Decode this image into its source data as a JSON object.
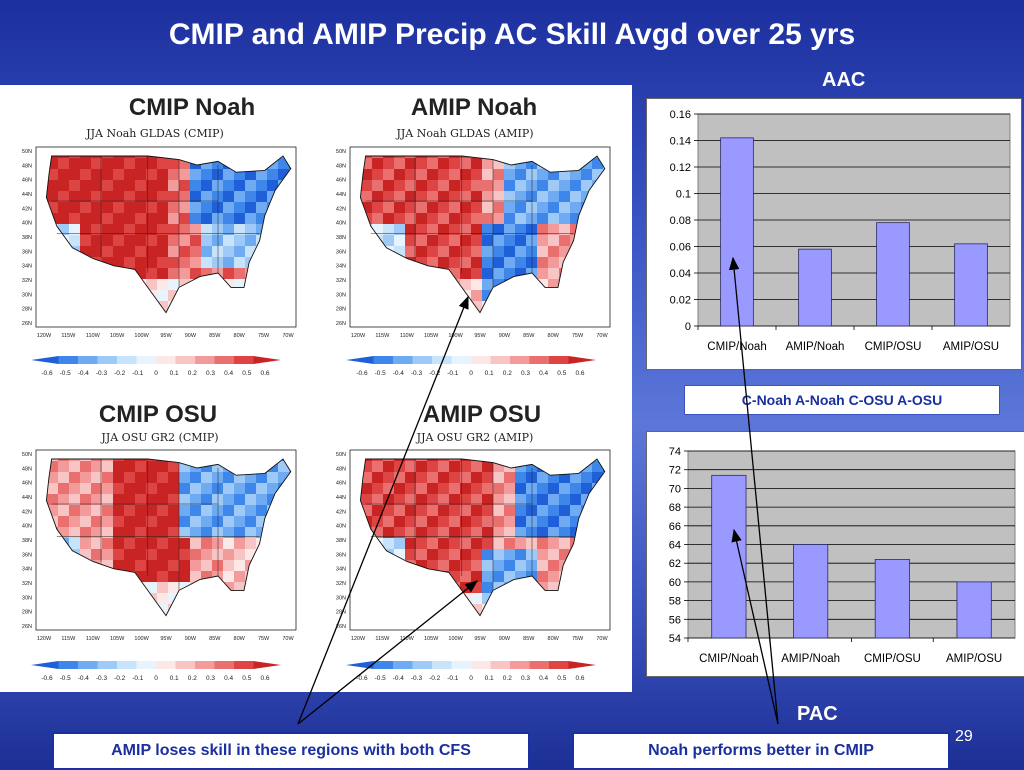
{
  "slide": {
    "title": "CMIP and AMIP Precip AC Skill  Avgd over 25 yrs",
    "page_number": "29"
  },
  "maps": [
    {
      "title": "CMIP Noah",
      "subtitle": "JJA Noah GLDAS (CMIP)"
    },
    {
      "title": "AMIP Noah",
      "subtitle": "JJA Noah GLDAS (AMIP)"
    },
    {
      "title": "CMIP OSU",
      "subtitle": "JJA OSU GR2 (CMIP)"
    },
    {
      "title": "AMIP OSU",
      "subtitle": "JJA OSU GR2 (AMIP)"
    }
  ],
  "map_axes": {
    "lon_ticks": [
      "120W",
      "115W",
      "110W",
      "105W",
      "100W",
      "95W",
      "90W",
      "85W",
      "80W",
      "75W",
      "70W"
    ],
    "lat_ticks": [
      "50N",
      "48N",
      "46N",
      "44N",
      "42N",
      "40N",
      "38N",
      "36N",
      "34N",
      "32N",
      "30N",
      "28N",
      "26N"
    ]
  },
  "colorbar": {
    "ticks": [
      "-0.6",
      "-0.5",
      "-0.4",
      "-0.3",
      "-0.2",
      "-0.1",
      "0",
      "0.1",
      "0.2",
      "0.3",
      "0.4",
      "0.5",
      "0.6"
    ],
    "colors": [
      "#1f5fd8",
      "#3f86ea",
      "#6eabf3",
      "#9fcaf8",
      "#c8e4fb",
      "#e8f4fd",
      "#fde8e8",
      "#f9c4c4",
      "#f39a9a",
      "#ea6f6f",
      "#dd4444",
      "#c92424"
    ]
  },
  "labels": {
    "aac": "AAC",
    "pac": "PAC",
    "legend": "C-Noah  A-Noah  C-OSU   A-OSU",
    "note_left": "AMIP loses skill in these regions with both CFS",
    "note_right": "Noah performs better in CMIP"
  },
  "chart_data": [
    {
      "type": "bar",
      "categories": [
        "CMIP/Noah",
        "AMIP/Noah",
        "CMIP/OSU",
        "AMIP/OSU"
      ],
      "values": [
        0.142,
        0.058,
        0.078,
        0.062
      ],
      "ylim": [
        0,
        0.16
      ],
      "yticks": [
        "0",
        "0.02",
        "0.04",
        "0.06",
        "0.08",
        "0.1",
        "0.12",
        "0.14",
        "0.16"
      ],
      "grid": true,
      "bar_color": "#9999ff",
      "plot_bg": "#c0c0c0"
    },
    {
      "type": "bar",
      "categories": [
        "CMIP/Noah",
        "AMIP/Noah",
        "CMIP/OSU",
        "AMIP/OSU"
      ],
      "values": [
        71.4,
        64.0,
        62.4,
        60.0
      ],
      "ylim": [
        54,
        74
      ],
      "yticks": [
        "54",
        "56",
        "58",
        "60",
        "62",
        "64",
        "66",
        "68",
        "70",
        "72",
        "74"
      ],
      "grid": true,
      "bar_color": "#9999ff",
      "plot_bg": "#c0c0c0"
    }
  ]
}
